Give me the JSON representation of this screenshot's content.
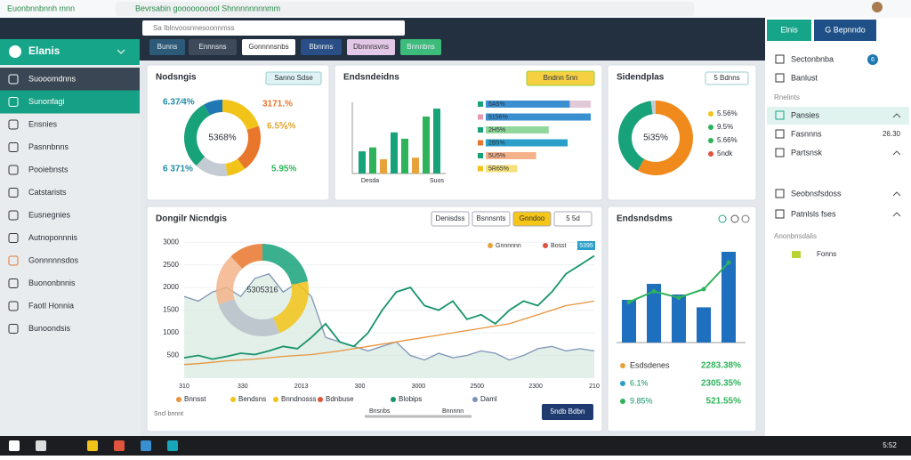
{
  "browser": {
    "site": "Euonbnnbnnh mnn",
    "url": "Bevrsabin goooooooool Shnnnnnnnnmm"
  },
  "sidebar": {
    "brand": "Elanis",
    "items": [
      "Suooomdnns",
      "Sunonfagi",
      "Ensnies",
      "Pasnnbnns",
      "Pooiebnsts",
      "Catstarists",
      "Eusnegnies",
      "Autnoponnnis",
      "Gonnnnnsdos",
      "Buononbnnis",
      "Faotl Honnia",
      "Bunoondsis"
    ]
  },
  "topbar": {
    "search": "Sa Iblnvoosnnesoonnmss",
    "tabs": [
      "Bunns",
      "Ennnsns",
      "Gonnnnsnbs",
      "Bbnnns",
      "Dbnnnsvns",
      "Bnnnbns"
    ]
  },
  "right_panel": {
    "buttons": [
      "Elnis",
      "G Bepnndo"
    ],
    "items": [
      "Sectonbnba",
      "Banlust"
    ],
    "badge": "6",
    "section_1": "Rnelints",
    "menu": [
      "Pansies",
      "Fasnnns",
      "Partsnsk",
      "Seobnsfsdoss",
      "Patnlsls fses"
    ],
    "menu_value": "26.30",
    "section_2": "Anonbnsdalis",
    "tag": "Fonns"
  },
  "taskbar": {
    "clock": "5:52"
  },
  "chart_data": [
    {
      "type": "pie",
      "title": "Nodsngis",
      "button": "Sanno Sdse",
      "values": [
        20,
        20,
        8,
        14,
        30,
        8
      ],
      "colors": [
        "#f2c318",
        "#e8762b",
        "#f2c318",
        "#c5cbd3",
        "#18a27a",
        "#1f77b4"
      ],
      "center_label": "5368%",
      "annotations": [
        "6.37⁄4%",
        "3171.%",
        "6.5⅚%",
        "6 371%",
        "5.95%"
      ],
      "annotation_colors": [
        "#1f8ca8",
        "#e8762b",
        "#e0a82e",
        "#1f8ca8",
        "#2fb35a"
      ]
    },
    {
      "type": "bar",
      "title": "Endsndeidns",
      "button": "Bndnn 5nn",
      "values": [
        28,
        33,
        18,
        52,
        44,
        20,
        72,
        82
      ],
      "colors": [
        "#18a27a",
        "#2fb35a",
        "#e8a23b",
        "#18a27a",
        "#2fb35a",
        "#e8a23b",
        "#2fb35a",
        "#18a27a"
      ],
      "ylim": [
        0,
        90
      ],
      "x_labels": [
        "Desda",
        "Suos"
      ],
      "hbar_labels": [
        "5A5%",
        "5156%",
        "2H5%",
        "2B5%",
        "5U5%",
        "5R65%"
      ],
      "hbar_values": [
        80,
        100,
        60,
        78,
        48,
        30
      ],
      "hbar_colors": [
        "#3a8fd0",
        "#3a8fd0",
        "#8fd79a",
        "#2a9fc9",
        "#f5b28a",
        "#f6e07a"
      ],
      "hbar_dot_colors": [
        "#18a27a",
        "#e39ab0",
        "#18a27a",
        "#e8762b",
        "#18a27a",
        "#f2c318"
      ],
      "hbar_xlim": [
        0,
        100
      ]
    },
    {
      "type": "pie",
      "title": "Sidendplas",
      "button": "5 Bdnns",
      "values": [
        58,
        40,
        2
      ],
      "colors": [
        "#f08a1c",
        "#18a27a",
        "#c5cbd3"
      ],
      "center_label": "5i35%",
      "legend": [
        "5.56%",
        "9.5%",
        "5.66%",
        "5ndk"
      ],
      "legend_colors": [
        "#f2c318",
        "#2fb35a",
        "#2fb35a",
        "#e0533d"
      ]
    },
    {
      "type": "line",
      "title": "Dongilr Nicndgis",
      "buttons": [
        "Denisdss",
        "Bsnnsnts",
        "Gnndoo",
        "5 5d"
      ],
      "ylim": [
        0,
        3200
      ],
      "yticks": [
        500,
        1000,
        1500,
        2000,
        2500,
        3000
      ],
      "grid": true,
      "x_labels": [
        "310",
        "330",
        "2013",
        "300",
        "3000",
        "2500",
        "2300",
        "210"
      ],
      "series": [
        {
          "name": "Blobips",
          "color": "#17936b",
          "values": [
            450,
            500,
            420,
            480,
            550,
            520,
            600,
            700,
            650,
            900,
            1200,
            800,
            700,
            1000,
            1500,
            1900,
            2000,
            1600,
            1500,
            1700,
            1300,
            1400,
            1200,
            1500,
            1700,
            1600,
            1900,
            2300,
            2500,
            2700
          ]
        },
        {
          "name": "Bnnsst",
          "color": "#e8943b",
          "values": [
            300,
            320,
            350,
            380,
            400,
            420,
            450,
            480,
            500,
            520,
            560,
            600,
            650,
            700,
            750,
            800,
            850,
            900,
            950,
            1000,
            1050,
            1100,
            1150,
            1200,
            1300,
            1400,
            1500,
            1600,
            1650,
            1700
          ]
        },
        {
          "name": "Daml",
          "color": "#7f95b5",
          "values": [
            1800,
            1700,
            1900,
            2000,
            1800,
            2200,
            2300,
            1900,
            2100,
            1800,
            900,
            800,
            700,
            600,
            700,
            800,
            500,
            400,
            550,
            450,
            500,
            600,
            550,
            400,
            500,
            650,
            700,
            600,
            650,
            600
          ]
        }
      ],
      "extra_legend": [
        {
          "name": "Bendsns",
          "color": "#f2c318"
        },
        {
          "name": "Bnndnosss",
          "color": "#f2c318"
        },
        {
          "name": "Bdnbuse",
          "color": "#e0533d"
        }
      ],
      "mini_legend": [
        "Gnnnnnn",
        "Bosst",
        "5395"
      ],
      "overlay": {
        "values": [
          22,
          22,
          26,
          18,
          12
        ],
        "colors": [
          "#18a27a",
          "#f2c318",
          "#b9c0c9",
          "#f3b48a",
          "#e8762b"
        ],
        "center_label": "5305316"
      },
      "footer": [
        "Sncl bnnnt",
        "Bnsnbs",
        "Bnnnnn"
      ],
      "button": "5ndb Bdbn"
    },
    {
      "type": "bar",
      "title": "Endsndsdms",
      "values": [
        40,
        55,
        45,
        33,
        85
      ],
      "color": "#1f6fbf",
      "ylim": [
        0,
        100
      ],
      "line_values": [
        38,
        48,
        42,
        50,
        75
      ],
      "line_color": "#2fb35a",
      "rows": [
        [
          "Esdsdenes",
          "2283.38%"
        ],
        [
          "6.1%",
          "2305.35%"
        ],
        [
          "9.85%",
          "521.55%"
        ]
      ]
    }
  ]
}
